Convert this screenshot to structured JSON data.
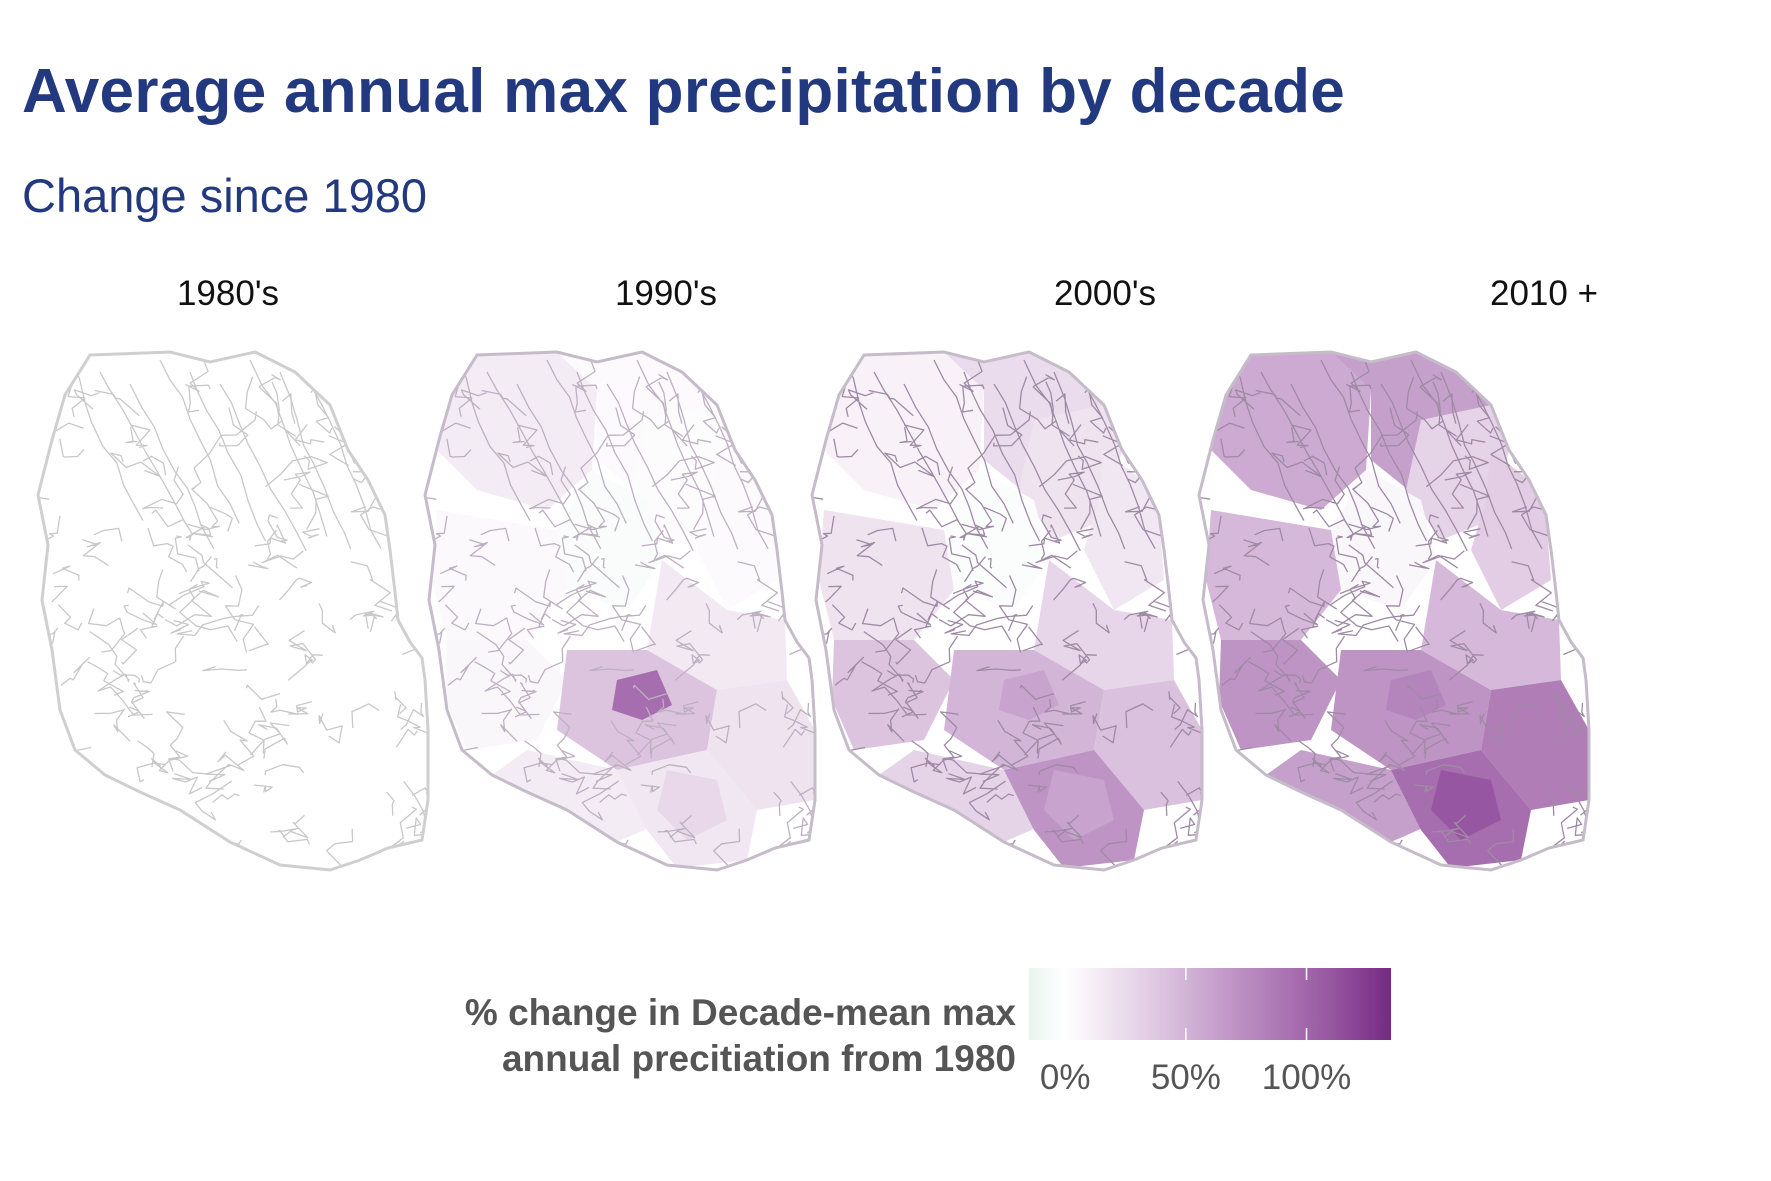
{
  "title": "Average annual max precipitation by decade",
  "subtitle": "Change since 1980",
  "colors": {
    "title": "#22397f",
    "scale_low": "#e8f4ee",
    "scale_zero": "#ffffff",
    "scale_high": "#762a83",
    "border": "#c8c8c8"
  },
  "panels": [
    {
      "label": "1980's",
      "level": "none"
    },
    {
      "label": "1990's",
      "level": "low"
    },
    {
      "label": "2000's",
      "level": "medium"
    },
    {
      "label": "2010 +",
      "level": "high"
    }
  ],
  "legend": {
    "title_line1": "% change in Decade-mean max",
    "title_line2": "annual precitiation from 1980",
    "ticks": [
      {
        "label": "0%",
        "value": 0
      },
      {
        "label": "50%",
        "value": 50
      },
      {
        "label": "100%",
        "value": 100
      }
    ],
    "range": [
      -15,
      135
    ]
  }
}
